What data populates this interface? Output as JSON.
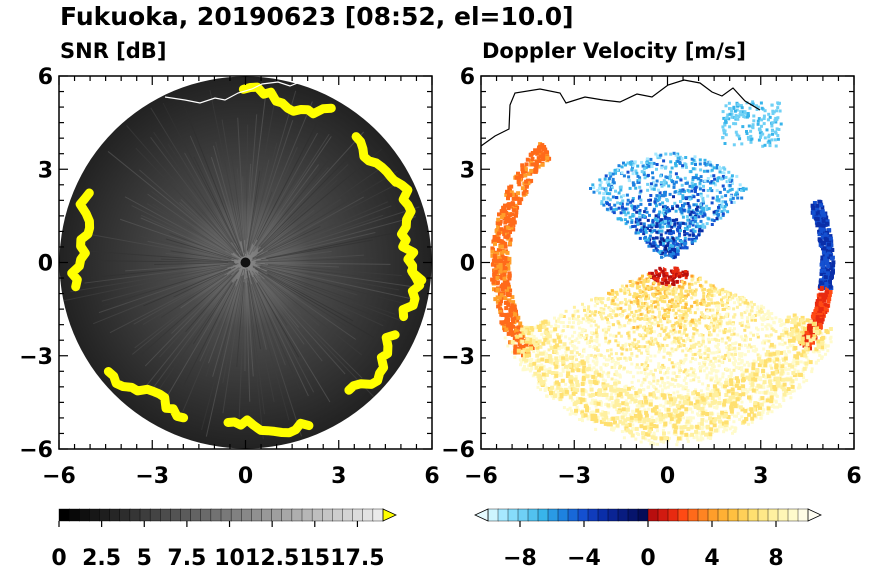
{
  "header": {
    "title": "Fukuoka, 20190623 [08:52, el=10.0]"
  },
  "chart_data": [
    {
      "type": "heatmap",
      "title": "SNR [dB]",
      "x_ticks": [
        -6,
        -3,
        0,
        3,
        6
      ],
      "y_ticks": [
        6,
        3,
        0,
        -3,
        -6
      ],
      "xlim": [
        -6,
        6
      ],
      "ylim": [
        -6,
        6
      ],
      "colorbar": {
        "min": 0,
        "max": 19,
        "labels": [
          "0",
          "2.5",
          "5",
          "7.5",
          "10",
          "12.5",
          "15",
          "17.5"
        ],
        "label_values": [
          0,
          2.5,
          5,
          7.5,
          10,
          12.5,
          15,
          17.5
        ],
        "colormap": "grayscale",
        "extend": "max",
        "extend_color": "#ffff00"
      },
      "radar_range": 6
    },
    {
      "type": "heatmap",
      "title": "Doppler Velocity [m/s]",
      "x_ticks": [
        -6,
        -3,
        0,
        3,
        6
      ],
      "y_ticks": [
        6,
        3,
        0,
        -3,
        -6
      ],
      "xlim": [
        -6,
        6
      ],
      "ylim": [
        -6,
        6
      ],
      "colorbar": {
        "min": -10,
        "max": 10,
        "labels": [
          "−8",
          "−4",
          "0",
          "4",
          "8"
        ],
        "label_values": [
          -8,
          -4,
          0,
          4,
          8
        ],
        "colormap": "blue-white-red",
        "extend": "both"
      }
    }
  ],
  "colors": {
    "echo_yellow": "#ffff00",
    "coastline": "#000000"
  }
}
